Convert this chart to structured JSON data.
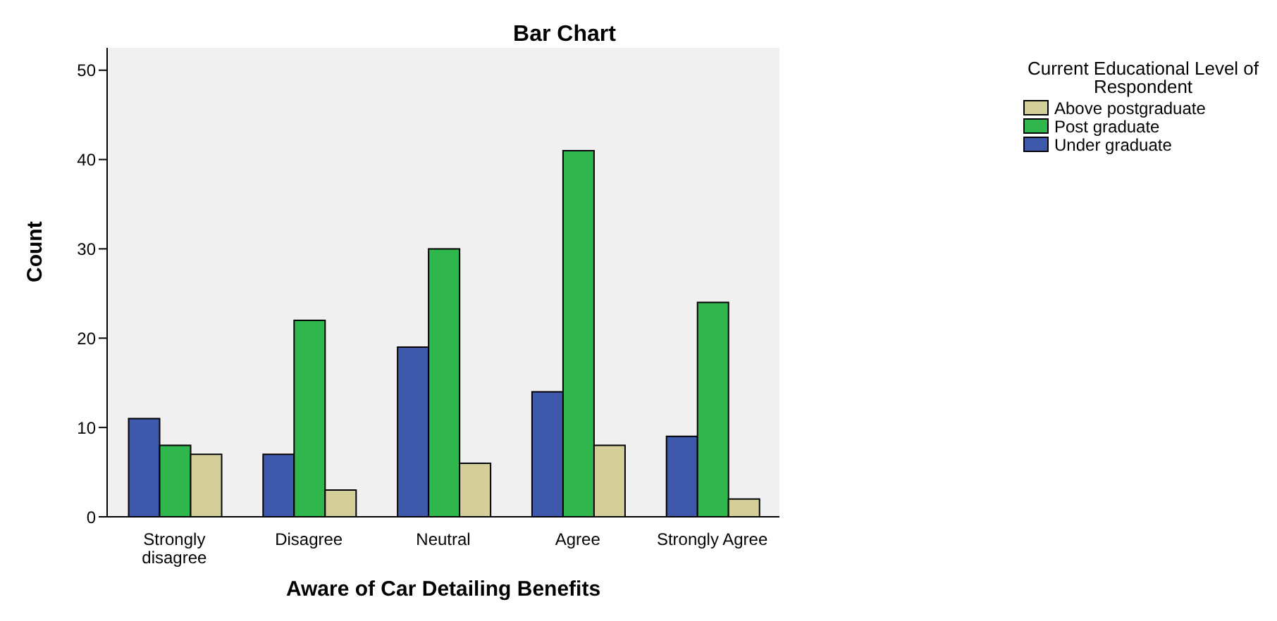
{
  "chart_data": {
    "type": "bar",
    "title": "Bar Chart",
    "xlabel": "Aware of Car Detailing Benefits",
    "ylabel": "Count",
    "legend_title": "Current Educational Level of Respondent",
    "legend": "top right",
    "categories": [
      "Strongly disagree",
      "Disagree",
      "Neutral",
      "Agree",
      "Strongly Agree"
    ],
    "series": [
      {
        "name": "Under graduate",
        "color": "#3e58ac",
        "values": [
          11,
          7,
          19,
          14,
          9
        ]
      },
      {
        "name": "Post graduate",
        "color": "#2fb64c",
        "values": [
          8,
          22,
          30,
          41,
          24
        ]
      },
      {
        "name": "Above postgraduate",
        "color": "#d4cf98",
        "values": [
          7,
          3,
          6,
          8,
          2
        ]
      }
    ],
    "ylim": [
      0,
      52.5
    ],
    "yticks": [
      0,
      10,
      20,
      30,
      40,
      50
    ]
  }
}
